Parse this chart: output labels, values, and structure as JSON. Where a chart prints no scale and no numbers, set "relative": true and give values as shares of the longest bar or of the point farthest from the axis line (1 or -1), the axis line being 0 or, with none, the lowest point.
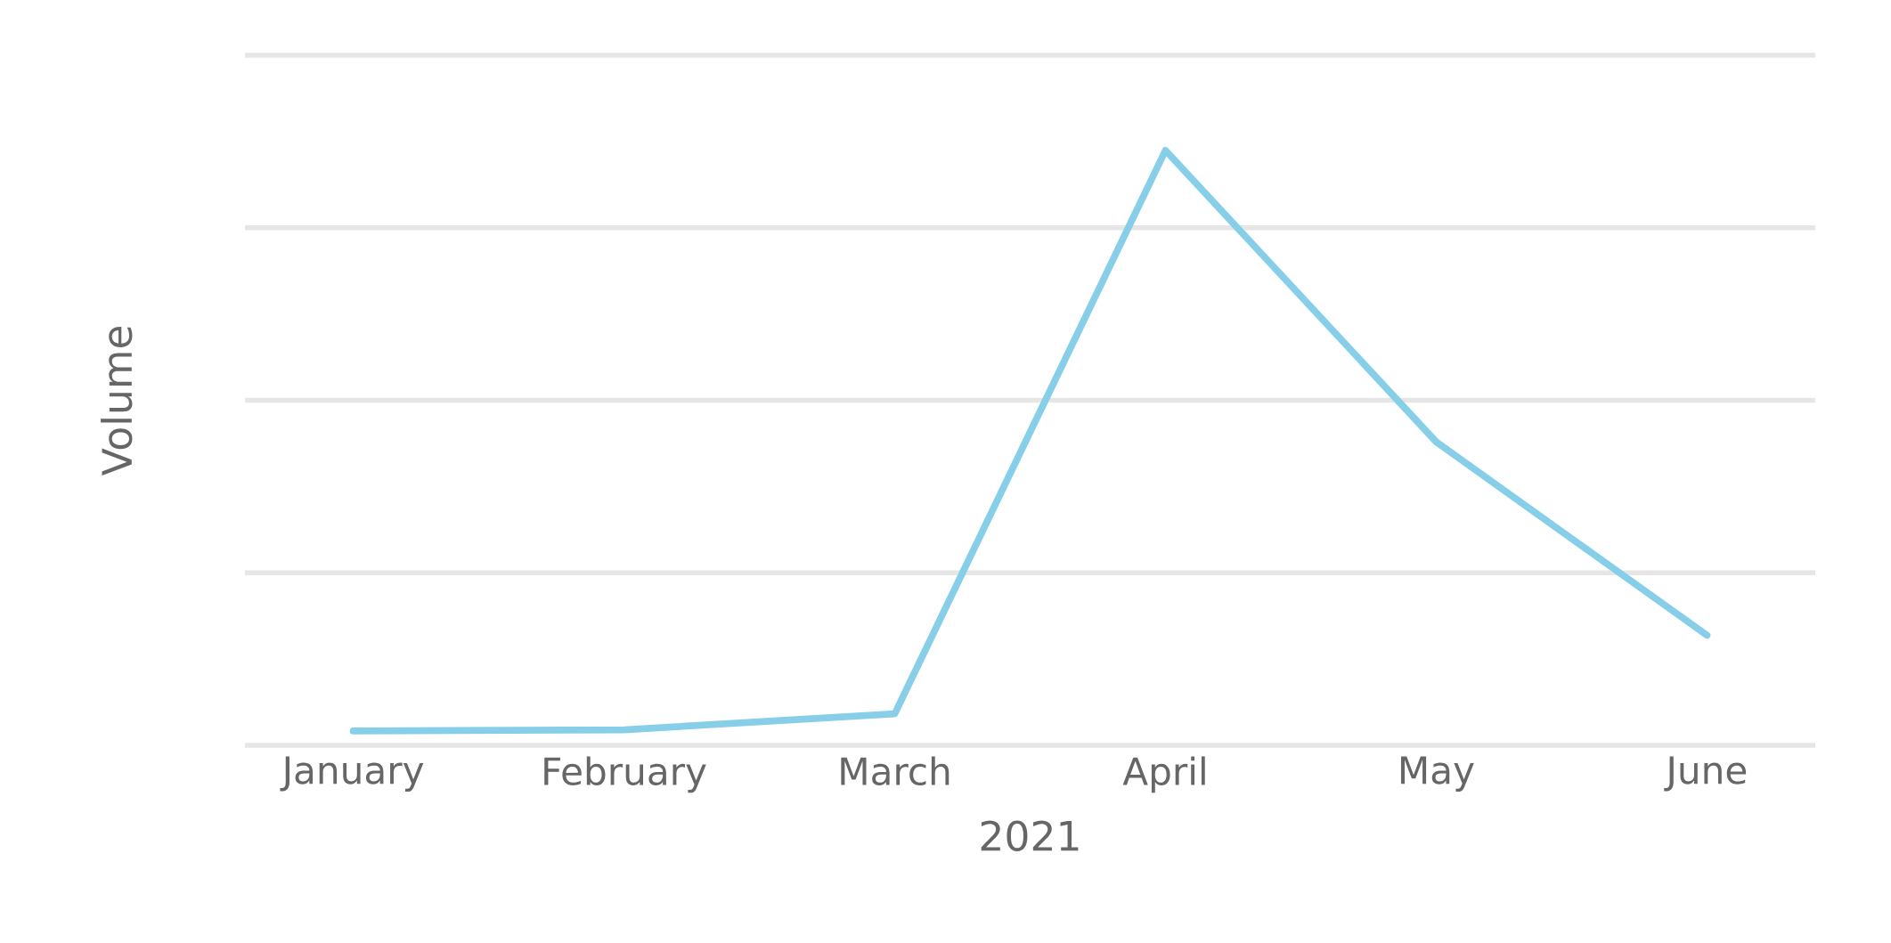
{
  "chart_data": {
    "type": "line",
    "xlabel": "2021",
    "ylabel": "Volume",
    "relative": true,
    "grid": "y",
    "categories": [
      "January",
      "February",
      "March",
      "April",
      "May",
      "June"
    ],
    "series": [
      {
        "color": "#87cfe8",
        "values": [
          0.024,
          0.026,
          0.053,
          1,
          0.51,
          0.185
        ]
      }
    ]
  }
}
